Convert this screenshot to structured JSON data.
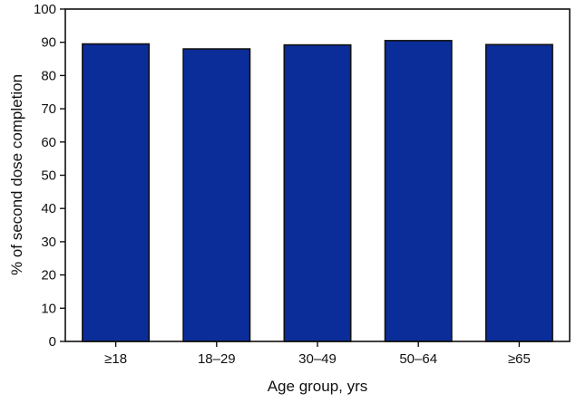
{
  "chart_data": {
    "type": "bar",
    "title": "",
    "xlabel": "Age group, yrs",
    "ylabel": "% of second dose completion",
    "categories": [
      "≥18",
      "18–29",
      "30–49",
      "50–64",
      "≥65"
    ],
    "values": [
      89.5,
      88.0,
      89.2,
      90.5,
      89.3
    ],
    "ylim": [
      0,
      100
    ],
    "yticks": [
      "0",
      "10",
      "20",
      "30",
      "40",
      "50",
      "60",
      "70",
      "80",
      "90",
      "100"
    ],
    "grid": false,
    "legend": "none",
    "bar_color": "#0b2d9a",
    "bar_edge_color": "#111111"
  }
}
